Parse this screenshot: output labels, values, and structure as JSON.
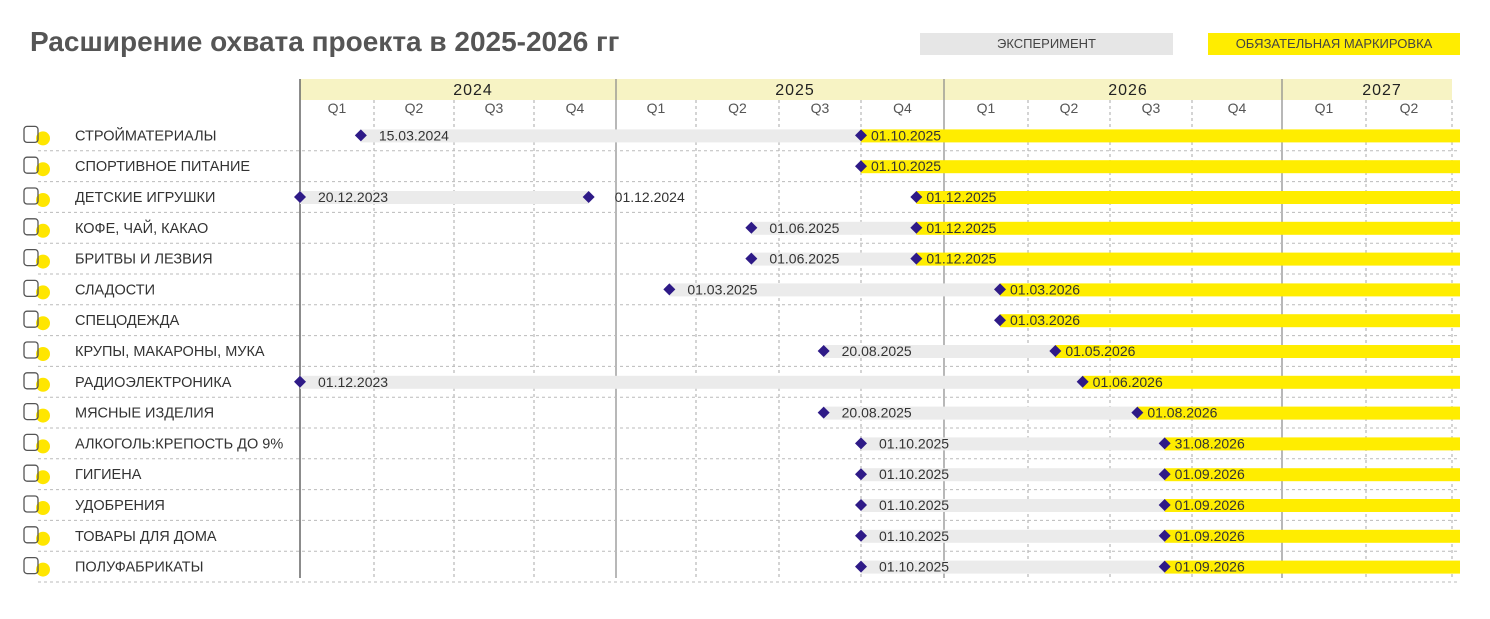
{
  "title": "Расширение охвата проекта в 2025-2026 гг",
  "legend": {
    "experiment": "ЭКСПЕРИМЕНТ",
    "mandatory": "ОБЯЗАТЕЛЬНАЯ МАРКИРОВКА"
  },
  "colors": {
    "experiment": "#ebebeb",
    "mandatory": "#ffed00",
    "marker": "#2e1a87",
    "year_band": "#f7f3c4",
    "icon_dot": "#ffe600",
    "text": "#333333",
    "grid": "#999999"
  },
  "chart_data": {
    "type": "gantt",
    "title": "Расширение охвата проекта в 2025-2026 гг",
    "years": [
      {
        "label": "2024",
        "quarters": [
          "Q1",
          "Q2",
          "Q3",
          "Q4"
        ]
      },
      {
        "label": "2025",
        "quarters": [
          "Q1",
          "Q2",
          "Q3",
          "Q4"
        ]
      },
      {
        "label": "2026",
        "quarters": [
          "Q1",
          "Q2",
          "Q3",
          "Q4"
        ]
      },
      {
        "label": "2027",
        "quarters": [
          "Q1",
          "Q2"
        ]
      }
    ],
    "series": [
      {
        "name": "ЭКСПЕРИМЕНТ"
      },
      {
        "name": "ОБЯЗАТЕЛЬНАЯ МАРКИРОВКА"
      }
    ],
    "rows": [
      {
        "label": "СТРОЙМАТЕРИАЛЫ",
        "icon": "building-materials-icon",
        "experiment_start": "15.03.2024",
        "mandatory_start": "01.10.2025"
      },
      {
        "label": "СПОРТИВНОЕ ПИТАНИЕ",
        "icon": "sports-nutrition-icon",
        "mandatory_start": "01.10.2025"
      },
      {
        "label": "ДЕТСКИЕ ИГРУШКИ",
        "icon": "toys-icon",
        "experiment_start": "20.12.2023",
        "experiment_end": "01.12.2024",
        "mandatory_start": "01.12.2025"
      },
      {
        "label": "КОФЕ, ЧАЙ, КАКАО",
        "icon": "coffee-cup-icon",
        "experiment_start": "01.06.2025",
        "mandatory_start": "01.12.2025"
      },
      {
        "label": "БРИТВЫ И ЛЕЗВИЯ",
        "icon": "razor-icon",
        "experiment_start": "01.06.2025",
        "mandatory_start": "01.12.2025"
      },
      {
        "label": "СЛАДОСТИ",
        "icon": "candy-icon",
        "experiment_start": "01.03.2025",
        "mandatory_start": "01.03.2026"
      },
      {
        "label": "СПЕЦОДЕЖДА",
        "icon": "workwear-icon",
        "mandatory_start": "01.03.2026"
      },
      {
        "label": "КРУПЫ, МАКАРОНЫ, МУКА",
        "icon": "wheat-icon",
        "experiment_start": "20.08.2025",
        "mandatory_start": "01.05.2026"
      },
      {
        "label": "РАДИОЭЛЕКТРОНИКА",
        "icon": "microchip-icon",
        "experiment_start": "01.12.2023",
        "mandatory_start": "01.06.2026"
      },
      {
        "label": "МЯСНЫЕ ИЗДЕЛИЯ",
        "icon": "meat-icon",
        "experiment_start": "20.08.2025",
        "mandatory_start": "01.08.2026"
      },
      {
        "label": "АЛКОГОЛЬ:КРЕПОСТЬ ДО 9%",
        "icon": "alcohol-icon",
        "experiment_start": "01.10.2025",
        "mandatory_start": "31.08.2026"
      },
      {
        "label": "ГИГИЕНА",
        "icon": "hygiene-icon",
        "experiment_start": "01.10.2025",
        "mandatory_start": "01.09.2026"
      },
      {
        "label": "УДОБРЕНИЯ",
        "icon": "fertilizer-icon",
        "experiment_start": "01.10.2025",
        "mandatory_start": "01.09.2026"
      },
      {
        "label": "ТОВАРЫ ДЛЯ ДОМА",
        "icon": "household-goods-icon",
        "experiment_start": "01.10.2025",
        "mandatory_start": "01.09.2026"
      },
      {
        "label": "ПОЛУФАБРИКАТЫ",
        "icon": "semi-finished-food-icon",
        "experiment_start": "01.10.2025",
        "mandatory_start": "01.09.2026"
      }
    ]
  }
}
